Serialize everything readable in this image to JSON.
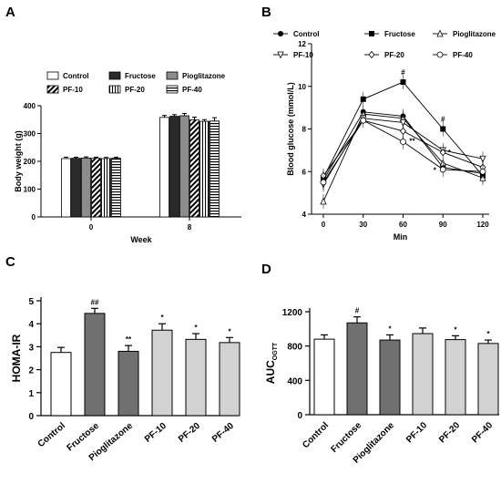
{
  "panels": {
    "a": "A",
    "b": "B",
    "c": "C",
    "d": "D"
  },
  "chart_data": [
    {
      "panel": "A",
      "type": "bar",
      "ylabel": "Body weight (g)",
      "xlabel": "Week",
      "ylim": [
        0,
        400
      ],
      "yticks": [
        "0",
        "100",
        "200",
        "300",
        "400"
      ],
      "categories": [
        "0",
        "8"
      ],
      "series": [
        {
          "name": "Control",
          "values": [
            210,
            358
          ],
          "errors": [
            5,
            7
          ]
        },
        {
          "name": "Fructose",
          "values": [
            211,
            362
          ],
          "errors": [
            4,
            6
          ]
        },
        {
          "name": "Pioglitazone",
          "values": [
            212,
            364
          ],
          "errors": [
            4,
            8
          ]
        },
        {
          "name": "PF-10",
          "values": [
            211,
            349
          ],
          "errors": [
            4,
            10
          ]
        },
        {
          "name": "PF-20",
          "values": [
            210,
            344
          ],
          "errors": [
            4,
            6
          ]
        },
        {
          "name": "PF-40",
          "values": [
            211,
            345
          ],
          "errors": [
            4,
            12
          ]
        }
      ]
    },
    {
      "panel": "B",
      "type": "line",
      "ylabel": "Blood glucose (mmol/L)",
      "xlabel": "Min",
      "x": [
        0,
        30,
        60,
        90,
        120
      ],
      "ylim": [
        4,
        12
      ],
      "yticks": [
        "4",
        "6",
        "8",
        "10",
        "12"
      ],
      "xticks": [
        "0",
        "30",
        "60",
        "90",
        "120"
      ],
      "series": [
        {
          "name": "Control",
          "values": [
            5.6,
            8.8,
            8.6,
            6.2,
            5.9
          ]
        },
        {
          "name": "Fructose",
          "values": [
            5.7,
            9.4,
            10.2,
            8.0,
            5.8
          ]
        },
        {
          "name": "Pioglitazone",
          "values": [
            4.6,
            8.7,
            8.5,
            6.4,
            5.7
          ]
        },
        {
          "name": "PF-10",
          "values": [
            5.4,
            8.5,
            8.3,
            7.0,
            6.6
          ]
        },
        {
          "name": "PF-20",
          "values": [
            5.8,
            8.4,
            7.9,
            6.9,
            6.2
          ]
        },
        {
          "name": "PF-40",
          "values": [
            5.5,
            8.4,
            7.4,
            6.1,
            6.0
          ]
        }
      ],
      "annotations": [
        "#",
        "#",
        "*",
        "**",
        "*",
        "*"
      ]
    },
    {
      "panel": "C",
      "type": "bar",
      "ylabel": "HOMA-IR",
      "ylim": [
        0,
        5
      ],
      "yticks": [
        "0",
        "1",
        "2",
        "3",
        "4",
        "5"
      ],
      "categories": [
        "Control",
        "Fructose",
        "Pioglitazone",
        "PF-10",
        "PF-20",
        "PF-40"
      ],
      "values": [
        2.75,
        4.45,
        2.8,
        3.72,
        3.32,
        3.18
      ],
      "errors": [
        0.22,
        0.22,
        0.25,
        0.28,
        0.25,
        0.22
      ],
      "annotations": [
        "",
        "##",
        "**",
        "*",
        "*",
        "*"
      ]
    },
    {
      "panel": "D",
      "type": "bar",
      "ylabel": "AUC",
      "ylabel_sub": "OGTT",
      "ylim": [
        0,
        1200
      ],
      "yticks": [
        "0",
        "400",
        "800",
        "1200"
      ],
      "categories": [
        "Control",
        "Fructose",
        "Pioglitazone",
        "PF-10",
        "PF-20",
        "PF-40"
      ],
      "values": [
        880,
        1070,
        870,
        945,
        875,
        830
      ],
      "errors": [
        50,
        70,
        60,
        65,
        45,
        40
      ],
      "annotations": [
        "",
        "#",
        "*",
        "",
        "*",
        "*"
      ]
    }
  ],
  "colors": {
    "white": "#ffffff",
    "black": "#2a2a2a",
    "dark": "#707070",
    "light": "#d2d2d2",
    "stroke": "#000000"
  }
}
